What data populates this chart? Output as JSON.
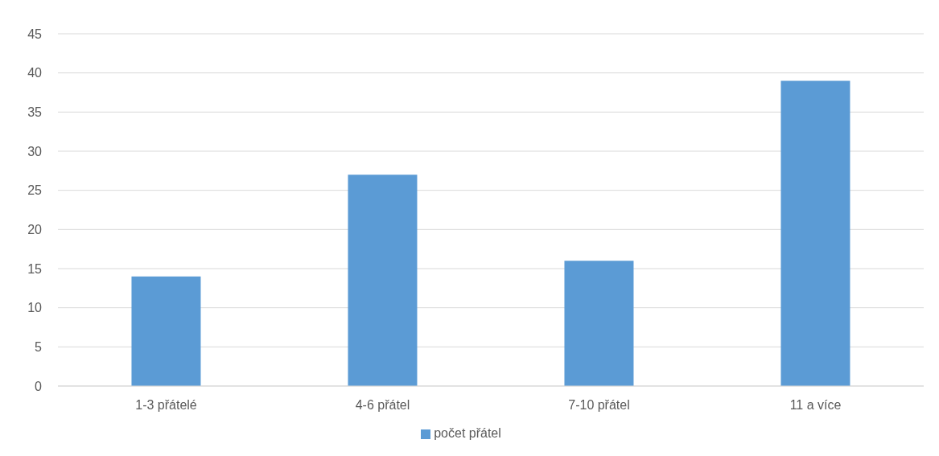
{
  "chart_data": {
    "type": "bar",
    "categories": [
      "1-3 přátelé",
      "4-6 přátel",
      "7-10 přátel",
      "11 a více"
    ],
    "series": [
      {
        "name": "počet přátel",
        "color": "#5b9bd5",
        "values": [
          14,
          27,
          16,
          39
        ]
      }
    ],
    "ylim": [
      0,
      45
    ],
    "yticks": [
      0,
      5,
      10,
      15,
      20,
      25,
      30,
      35,
      40,
      45
    ],
    "grid": "y",
    "legend": "bottom"
  }
}
